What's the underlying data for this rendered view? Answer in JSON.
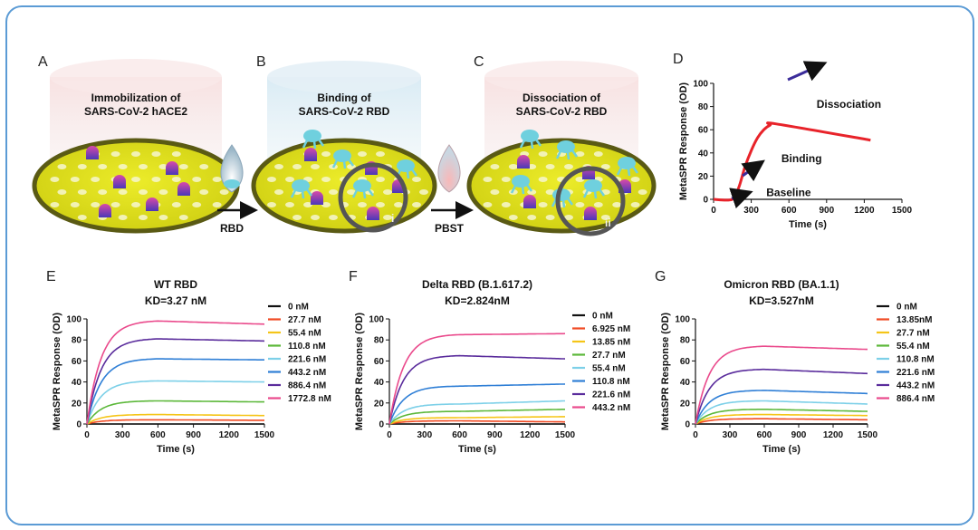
{
  "colors": {
    "frame": "#5b9bd5",
    "dish_fill": "#e2e21a",
    "dish_dark": "#585814",
    "molecule": "#6fd0de",
    "receptor_top": "#c63aa0",
    "receptor_bottom": "#4b3bb4"
  },
  "schematic": {
    "panels": [
      {
        "letter": "A",
        "text1": "Immobilization of",
        "text2": "SARS-CoV-2 hACE2"
      },
      {
        "letter": "B",
        "text1": "Binding of",
        "text2": "SARS-CoV-2 RBD"
      },
      {
        "letter": "C",
        "text1": "Dissociation of",
        "text2": "SARS-CoV-2 RBD"
      }
    ],
    "arrow1": "RBD",
    "arrow2": "PBST",
    "roman1": "i",
    "roman2": "ii"
  },
  "chart_data": [
    {
      "panel": "D",
      "type": "line",
      "title": "",
      "xlabel": "Time (s)",
      "ylabel": "MetaSPR Response (OD)",
      "xlim": [
        0,
        1500
      ],
      "ylim": [
        0,
        100
      ],
      "xticks": [
        "0",
        "300",
        "600",
        "900",
        "1200",
        "1500"
      ],
      "yticks": [
        "0",
        "20",
        "40",
        "60",
        "80",
        "100"
      ],
      "series": [
        {
          "name": "sensorgram",
          "color": "#e8232a",
          "x": [
            0,
            150,
            200,
            250,
            300,
            350,
            400,
            450,
            500,
            1250
          ],
          "y": [
            0,
            0,
            10,
            28,
            42,
            53,
            60,
            64,
            65,
            51
          ]
        }
      ],
      "annotations": [
        {
          "text": "Dissociation",
          "x": 820,
          "y": 82
        },
        {
          "text": "Binding",
          "x": 540,
          "y": 35
        },
        {
          "text": "Baseline",
          "x": 420,
          "y": 6
        }
      ]
    },
    {
      "panel": "E",
      "type": "line",
      "title": "WT RBD",
      "subtitle": "KD=3.27 nM",
      "xlabel": "Time (s)",
      "ylabel": "MetaSPR Response (OD)",
      "xlim": [
        0,
        1500
      ],
      "ylim": [
        0,
        100
      ],
      "xticks": [
        "0",
        "300",
        "600",
        "900",
        "1200",
        "1500"
      ],
      "yticks": [
        "0",
        "20",
        "40",
        "60",
        "80",
        "100"
      ],
      "series": [
        {
          "name": "0 nM",
          "color": "#111111",
          "plateau": 0,
          "end": 0
        },
        {
          "name": "27.7 nM",
          "color": "#f04a23",
          "plateau": 4,
          "end": 3.5
        },
        {
          "name": "55.4 nM",
          "color": "#f5c518",
          "plateau": 9,
          "end": 8
        },
        {
          "name": "110.8 nM",
          "color": "#5cb83a",
          "plateau": 22,
          "end": 21
        },
        {
          "name": "221.6 nM",
          "color": "#7dd0e8",
          "plateau": 41,
          "end": 40
        },
        {
          "name": "443.2 nM",
          "color": "#2f7fd6",
          "plateau": 62,
          "end": 61
        },
        {
          "name": "886.4 nM",
          "color": "#5a2c9c",
          "plateau": 81,
          "end": 79
        },
        {
          "name": "1772.8 nM",
          "color": "#ea4a8c",
          "plateau": 98,
          "end": 95
        }
      ]
    },
    {
      "panel": "F",
      "type": "line",
      "title": "Delta RBD (B.1.617.2)",
      "subtitle": "KD=2.824nM",
      "xlabel": "Time (s)",
      "ylabel": "MetaSPR Response (OD)",
      "xlim": [
        0,
        1500
      ],
      "ylim": [
        0,
        100
      ],
      "xticks": [
        "0",
        "300",
        "600",
        "900",
        "1200",
        "1500"
      ],
      "yticks": [
        "0",
        "20",
        "40",
        "60",
        "80",
        "100"
      ],
      "series": [
        {
          "name": "0 nM",
          "color": "#111111",
          "plateau": 0,
          "end": 0
        },
        {
          "name": "6.925 nM",
          "color": "#f04a23",
          "plateau": 3,
          "end": 2
        },
        {
          "name": "13.85 nM",
          "color": "#f5c518",
          "plateau": 6,
          "end": 7
        },
        {
          "name": "27.7 nM",
          "color": "#5cb83a",
          "plateau": 12,
          "end": 14
        },
        {
          "name": "55.4 nM",
          "color": "#7dd0e8",
          "plateau": 19,
          "end": 22
        },
        {
          "name": "110.8 nM",
          "color": "#2f7fd6",
          "plateau": 36,
          "end": 38
        },
        {
          "name": "221.6 nM",
          "color": "#5a2c9c",
          "plateau": 65,
          "end": 62
        },
        {
          "name": "443.2 nM",
          "color": "#ea4a8c",
          "plateau": 85,
          "end": 86
        }
      ]
    },
    {
      "panel": "G",
      "type": "line",
      "title": "Omicron RBD (BA.1.1)",
      "subtitle": "KD=3.527nM",
      "xlabel": "Time (s)",
      "ylabel": "MetaSPR Response (OD)",
      "xlim": [
        0,
        1500
      ],
      "ylim": [
        0,
        100
      ],
      "xticks": [
        "0",
        "300",
        "600",
        "900",
        "1200",
        "1500"
      ],
      "yticks": [
        "0",
        "20",
        "40",
        "60",
        "80",
        "100"
      ],
      "series": [
        {
          "name": "0 nM",
          "color": "#111111",
          "plateau": 0,
          "end": 0
        },
        {
          "name": "13.85nM",
          "color": "#f04a23",
          "plateau": 5,
          "end": 4
        },
        {
          "name": "27.7 nM",
          "color": "#f5c518",
          "plateau": 9,
          "end": 8
        },
        {
          "name": "55.4 nM",
          "color": "#5cb83a",
          "plateau": 14,
          "end": 12
        },
        {
          "name": "110.8 nM",
          "color": "#7dd0e8",
          "plateau": 22,
          "end": 19
        },
        {
          "name": "221.6 nM",
          "color": "#2f7fd6",
          "plateau": 32,
          "end": 29
        },
        {
          "name": "443.2 nM",
          "color": "#5a2c9c",
          "plateau": 52,
          "end": 48
        },
        {
          "name": "886.4 nM",
          "color": "#ea4a8c",
          "plateau": 74,
          "end": 71
        }
      ]
    }
  ]
}
